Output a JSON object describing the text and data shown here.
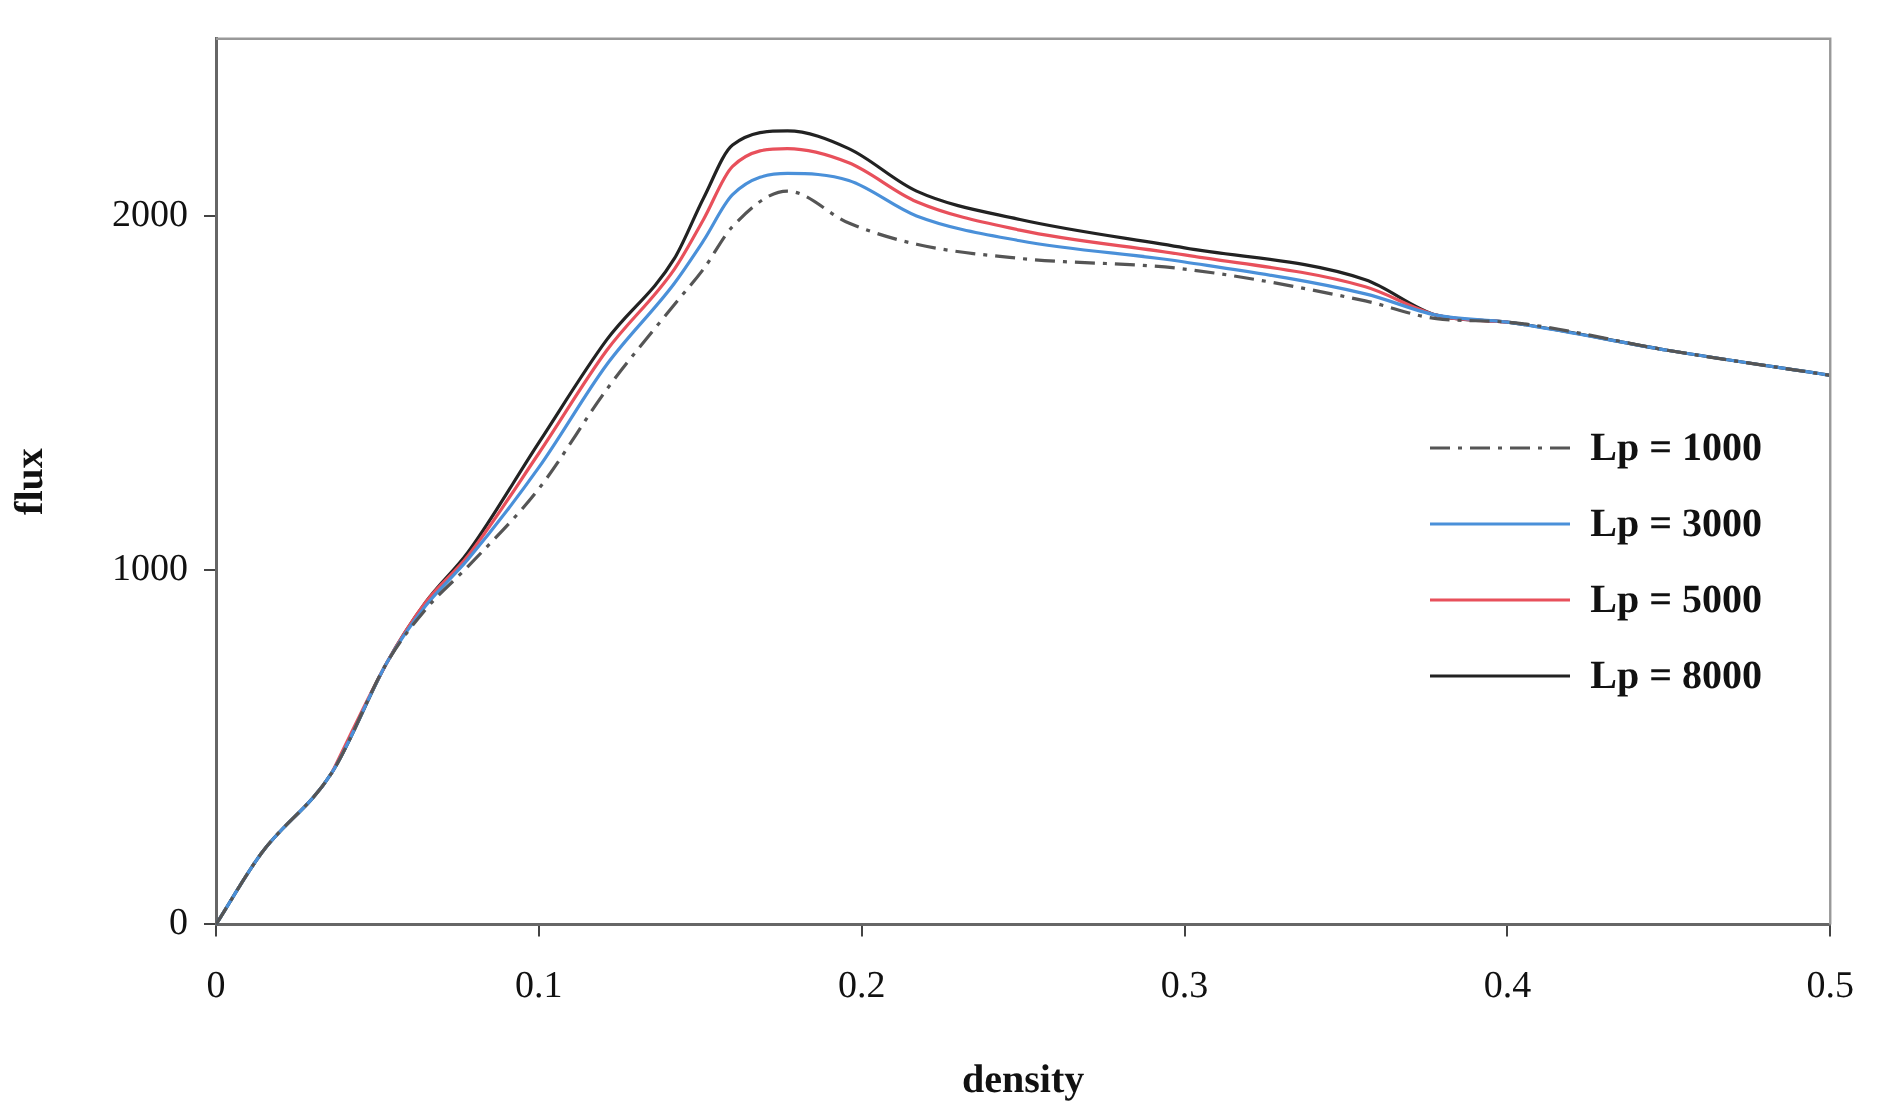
{
  "chart_data": {
    "type": "line",
    "xlabel": "density",
    "ylabel": "flux",
    "x": [
      0,
      0.014,
      0.036,
      0.053,
      0.065,
      0.078,
      0.1,
      0.121,
      0.142,
      0.151,
      0.16,
      0.177,
      0.196,
      0.217,
      0.249,
      0.3,
      0.356,
      0.378,
      0.4,
      0.45,
      0.5
    ],
    "series": [
      {
        "name": "Lp = 1000",
        "color": "#555555",
        "line_style": "dashed",
        "values": [
          0,
          200,
          430,
          740,
          890,
          1010,
          1230,
          1510,
          1750,
          1850,
          1970,
          2070,
          1980,
          1920,
          1880,
          1850,
          1760,
          1710,
          1700,
          1620,
          1550
        ]
      },
      {
        "name": "Lp = 3000",
        "color": "#4a90d9",
        "line_style": "solid",
        "values": [
          0,
          200,
          430,
          740,
          900,
          1030,
          1290,
          1580,
          1810,
          1930,
          2060,
          2120,
          2100,
          2000,
          1930,
          1870,
          1780,
          1720,
          1700,
          1620,
          1550
        ]
      },
      {
        "name": "Lp = 5000",
        "color": "#e8505b",
        "line_style": "solid",
        "values": [
          null,
          null,
          430,
          740,
          910,
          1040,
          1330,
          1620,
          1850,
          1990,
          2140,
          2190,
          2150,
          2040,
          1960,
          1890,
          1800,
          1720,
          1700,
          null,
          null
        ]
      },
      {
        "name": "Lp = 8000",
        "color": "#222222",
        "line_style": "solid",
        "values": [
          0,
          200,
          430,
          740,
          910,
          1050,
          1360,
          1650,
          1880,
          2050,
          2200,
          2240,
          2190,
          2070,
          1990,
          1910,
          1820,
          1720,
          1700,
          1620,
          1550
        ]
      }
    ],
    "xlim": [
      0,
      0.5
    ],
    "xticks": [
      0,
      0.1,
      0.2,
      0.3,
      0.4,
      0.5
    ],
    "ylim": [
      0,
      2500
    ],
    "yticks": [
      0,
      1000,
      2000
    ],
    "grid": false,
    "legend": "right",
    "marker": "none"
  }
}
